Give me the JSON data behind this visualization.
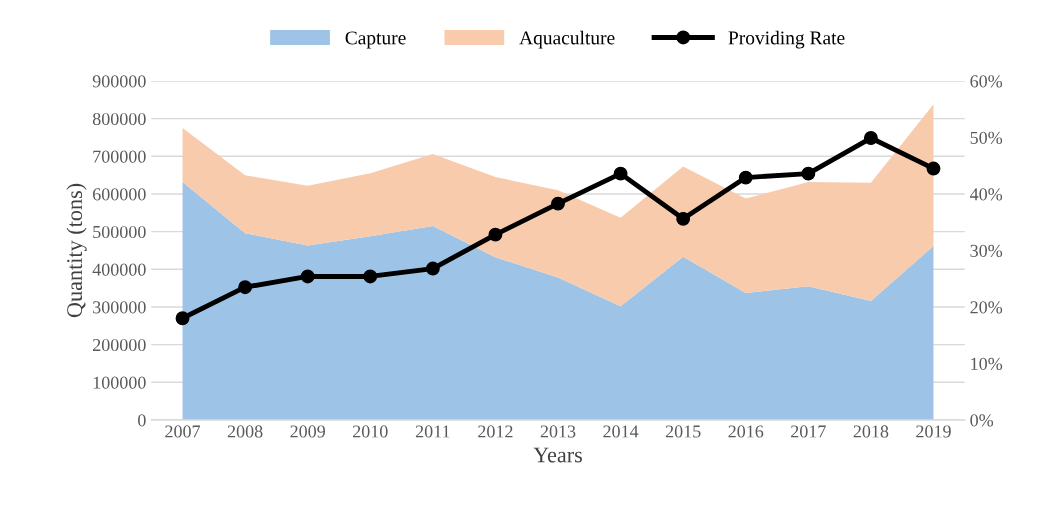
{
  "chart_data": {
    "type": "area",
    "stacked": true,
    "xlabel": "Years",
    "ylabel": "Quantity (tons)",
    "categories": [
      "2007",
      "2008",
      "2009",
      "2010",
      "2011",
      "2012",
      "2013",
      "2014",
      "2015",
      "2016",
      "2017",
      "2018",
      "2019"
    ],
    "series": [
      {
        "name": "Capture",
        "color": "#9dc3e6",
        "values": [
          632000,
          496000,
          463000,
          488000,
          515000,
          432000,
          378000,
          302000,
          433000,
          337000,
          355000,
          316000,
          462000
        ]
      },
      {
        "name": "Aquaculture",
        "color": "#f8cbad",
        "values": [
          143000,
          154000,
          159000,
          167000,
          191000,
          213000,
          232000,
          235000,
          240000,
          251000,
          277000,
          314000,
          376000
        ]
      },
      {
        "name": "Providing Rate",
        "type": "line",
        "axis": "y2",
        "color": "#000000",
        "marker": "circle",
        "values": [
          18.0,
          23.5,
          25.4,
          25.4,
          26.8,
          32.8,
          38.3,
          43.6,
          35.6,
          42.9,
          43.6,
          49.9,
          44.5
        ]
      }
    ],
    "ylim": [
      0,
      900000
    ],
    "yticks": [
      0,
      100000,
      200000,
      300000,
      400000,
      500000,
      600000,
      700000,
      800000,
      900000
    ],
    "y2lim": [
      0,
      60
    ],
    "y2ticks": [
      {
        "value": 0,
        "label": "0%"
      },
      {
        "value": 10,
        "label": "10%"
      },
      {
        "value": 20,
        "label": "20%"
      },
      {
        "value": 30,
        "label": "30%"
      },
      {
        "value": 40,
        "label": "40%"
      },
      {
        "value": 50,
        "label": "50%"
      },
      {
        "value": 60,
        "label": "60%"
      }
    ],
    "grid": "y",
    "legend": "top"
  }
}
